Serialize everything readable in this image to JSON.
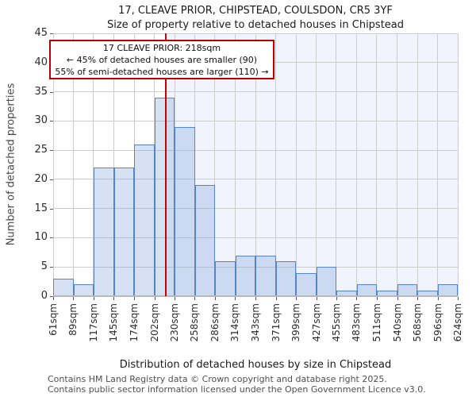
{
  "title": "17, CLEAVE PRIOR, CHIPSTEAD, COULSDON, CR5 3YF",
  "subtitle": "Size of property relative to detached houses in Chipstead",
  "annotation": {
    "line1": "17 CLEAVE PRIOR: 218sqm",
    "line2": "← 45% of detached houses are smaller (90)",
    "line3": "55% of semi-detached houses are larger (110) →"
  },
  "footer": {
    "line1": "Contains HM Land Registry data © Crown copyright and database right 2025.",
    "line2": "Contains public sector information licensed under the Open Government Licence v3.0."
  },
  "chart_data": {
    "type": "bar",
    "title": "17, CLEAVE PRIOR, CHIPSTEAD, COULSDON, CR5 3YF",
    "subtitle": "Size of property relative to detached houses in Chipstead",
    "xlabel": "Distribution of detached houses by size in Chipstead",
    "ylabel": "Number of detached properties",
    "bin_edges_sqm": [
      61,
      89,
      117,
      145,
      174,
      202,
      230,
      258,
      286,
      314,
      343,
      371,
      399,
      427,
      455,
      483,
      511,
      540,
      568,
      596,
      624
    ],
    "x_tick_labels": [
      "61sqm",
      "89sqm",
      "117sqm",
      "145sqm",
      "174sqm",
      "202sqm",
      "230sqm",
      "258sqm",
      "286sqm",
      "314sqm",
      "343sqm",
      "371sqm",
      "399sqm",
      "427sqm",
      "455sqm",
      "483sqm",
      "511sqm",
      "540sqm",
      "568sqm",
      "596sqm",
      "624sqm"
    ],
    "values": [
      3,
      2,
      22,
      22,
      26,
      34,
      29,
      19,
      6,
      7,
      7,
      6,
      4,
      5,
      1,
      2,
      1,
      2,
      1,
      2
    ],
    "y_ticks": [
      0,
      5,
      10,
      15,
      20,
      25,
      30,
      35,
      40,
      45
    ],
    "ylim": [
      0,
      45
    ],
    "xlim_sqm": [
      61,
      624
    ],
    "marker_value_sqm": 218,
    "shaded_span_sqm": [
      218,
      624
    ],
    "grid": true,
    "legend": null,
    "colors": {
      "bar_fill": "rgba(118,158,215,0.30)",
      "bar_border": "#5585c7",
      "marker_line": "#b00b0b",
      "annotation_border": "#bb0000",
      "shaded_span": "#f1f4fc",
      "gridline": "#cdcdcd"
    }
  }
}
